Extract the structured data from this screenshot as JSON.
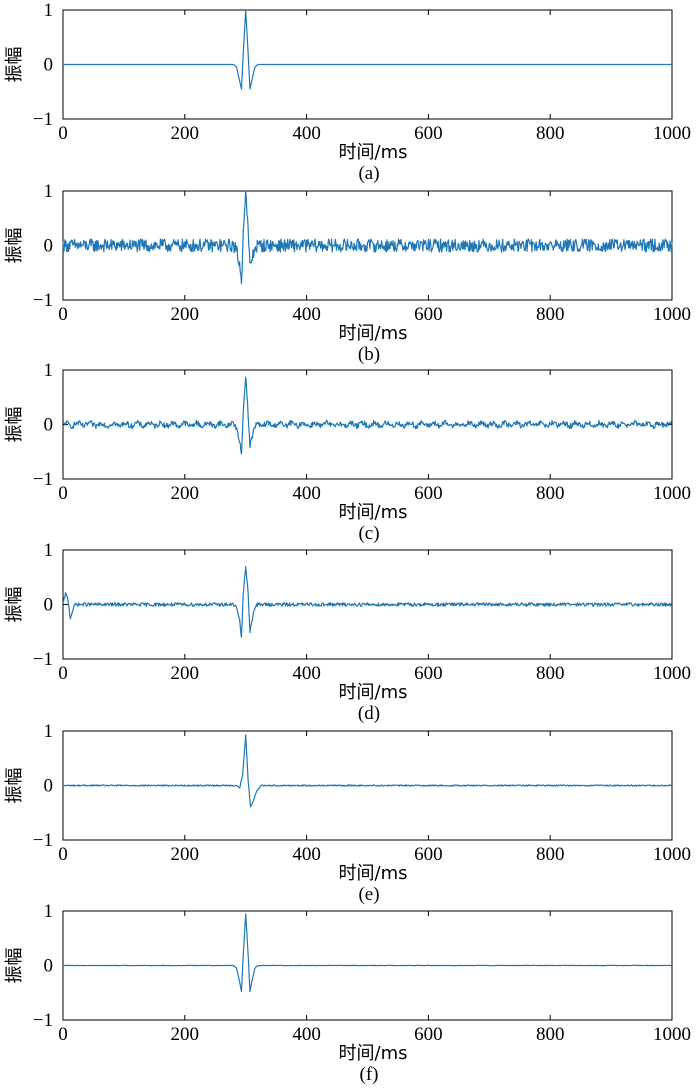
{
  "x_axis_label": "时间/ms",
  "y_axis_label": "振幅",
  "x_ticks": [
    "0",
    "200",
    "400",
    "600",
    "800",
    "1000"
  ],
  "y_ticks": [
    "1",
    "0",
    "−1"
  ],
  "line_color": "#1f77b4",
  "chart_data": [
    {
      "type": "line",
      "caption": "(a)",
      "xlabel": "时间/ms",
      "ylabel": "振幅",
      "xlim": [
        0,
        1000
      ],
      "ylim": [
        -1,
        1
      ],
      "x": [
        0,
        280,
        285,
        290,
        293,
        296,
        300,
        304,
        307,
        310,
        315,
        320,
        1000
      ],
      "values": [
        0,
        0,
        -0.05,
        -0.3,
        -0.45,
        0.2,
        1.0,
        0.2,
        -0.45,
        -0.3,
        -0.05,
        0,
        0
      ],
      "noise": 0
    },
    {
      "type": "line",
      "caption": "(b)",
      "xlabel": "时间/ms",
      "ylabel": "振幅",
      "xlim": [
        0,
        1000
      ],
      "ylim": [
        -1,
        1
      ],
      "x": [
        0,
        280,
        285,
        290,
        293,
        296,
        300,
        304,
        307,
        310,
        315,
        320,
        1000
      ],
      "values": [
        0,
        0,
        -0.1,
        -0.35,
        -0.7,
        0.3,
        1.0,
        0.25,
        -0.4,
        -0.25,
        -0.05,
        0,
        0
      ],
      "noise": 0.12
    },
    {
      "type": "line",
      "caption": "(c)",
      "xlabel": "时间/ms",
      "ylabel": "振幅",
      "xlim": [
        0,
        1000
      ],
      "ylim": [
        -1,
        1
      ],
      "x": [
        0,
        280,
        285,
        290,
        293,
        296,
        300,
        304,
        307,
        310,
        315,
        320,
        1000
      ],
      "values": [
        0,
        0,
        -0.05,
        -0.3,
        -0.55,
        0.2,
        0.9,
        0.2,
        -0.35,
        -0.25,
        -0.05,
        0,
        0
      ],
      "noise": 0.06
    },
    {
      "type": "line",
      "caption": "(d)",
      "xlabel": "时间/ms",
      "ylabel": "振幅",
      "xlim": [
        0,
        1000
      ],
      "ylim": [
        -1,
        1
      ],
      "x": [
        0,
        4,
        8,
        12,
        16,
        20,
        280,
        285,
        290,
        293,
        296,
        300,
        304,
        307,
        310,
        315,
        320,
        1000
      ],
      "values": [
        0,
        0.2,
        0.1,
        -0.25,
        -0.1,
        0,
        0,
        -0.05,
        -0.3,
        -0.6,
        0.2,
        0.7,
        0.2,
        -0.5,
        -0.3,
        -0.05,
        0,
        0
      ],
      "noise": 0.04
    },
    {
      "type": "line",
      "caption": "(e)",
      "xlabel": "时间/ms",
      "ylabel": "振幅",
      "xlim": [
        0,
        1000
      ],
      "ylim": [
        -1,
        1
      ],
      "x": [
        0,
        285,
        290,
        295,
        300,
        304,
        308,
        312,
        318,
        325,
        1000
      ],
      "values": [
        0,
        0,
        -0.05,
        0.2,
        0.92,
        0.1,
        -0.4,
        -0.3,
        -0.1,
        0,
        0
      ],
      "noise": 0.015
    },
    {
      "type": "line",
      "caption": "(f)",
      "xlabel": "时间/ms",
      "ylabel": "振幅",
      "xlim": [
        0,
        1000
      ],
      "ylim": [
        -1,
        1
      ],
      "x": [
        0,
        280,
        285,
        290,
        293,
        296,
        300,
        304,
        307,
        310,
        315,
        320,
        1000
      ],
      "values": [
        0,
        0,
        -0.05,
        -0.3,
        -0.48,
        0.2,
        0.95,
        0.2,
        -0.48,
        -0.3,
        -0.05,
        0,
        0
      ],
      "noise": 0.006
    }
  ]
}
